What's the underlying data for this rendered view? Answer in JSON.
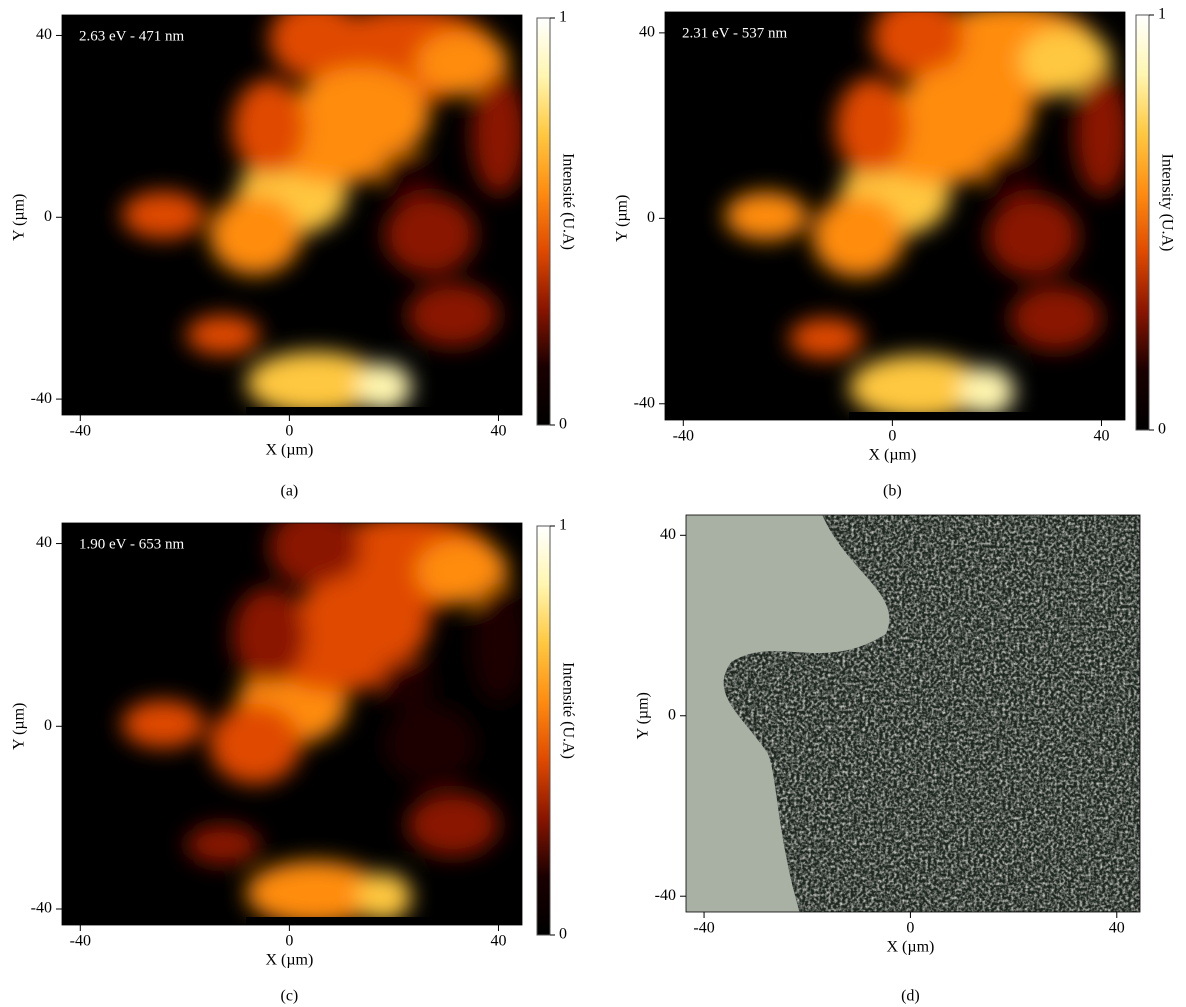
{
  "chart_data": [
    {
      "type": "heatmap",
      "annotation": "2.63 eV - 471 nm",
      "caption": "(a)",
      "x_label": "X (µm)",
      "y_label": "Y (µm)",
      "xlim": [
        -43.5,
        44.5
      ],
      "ylim": [
        -43.5,
        44.5
      ],
      "xticks": [
        -40,
        0,
        40
      ],
      "yticks": [
        -40,
        0,
        40
      ],
      "colorbar_label": "Intensité (U.A)",
      "colorbar_lim": [
        0,
        1
      ],
      "colorbar_ticks": [
        0,
        1
      ],
      "colormap": [
        "#000000",
        "#1a0000",
        "#8a1500",
        "#e04a00",
        "#ff8c10",
        "#ffc840",
        "#fff6b0",
        "#ffffff"
      ]
    },
    {
      "type": "heatmap",
      "annotation": "2.31 eV - 537 nm",
      "caption": "(b)",
      "x_label": "X (µm)",
      "y_label": "Y (µm)",
      "xlim": [
        -43.5,
        44.5
      ],
      "ylim": [
        -43.5,
        44.5
      ],
      "xticks": [
        -40,
        0,
        40
      ],
      "yticks": [
        -40,
        0,
        40
      ],
      "colorbar_label": "Intensity (U.A)",
      "colorbar_lim": [
        0,
        1
      ],
      "colorbar_ticks": [
        0,
        1
      ],
      "colormap": [
        "#000000",
        "#1a0000",
        "#8a1500",
        "#e04a00",
        "#ff8c10",
        "#ffc840",
        "#fff6b0",
        "#ffffff"
      ]
    },
    {
      "type": "heatmap",
      "annotation": "1.90 eV - 653 nm",
      "caption": "(c)",
      "x_label": "X (µm)",
      "y_label": "Y (µm)",
      "xlim": [
        -43.5,
        44.5
      ],
      "ylim": [
        -43.5,
        44.5
      ],
      "xticks": [
        -40,
        0,
        40
      ],
      "yticks": [
        -40,
        0,
        40
      ],
      "colorbar_label": "Intensité (U.A)",
      "colorbar_lim": [
        0,
        1
      ],
      "colorbar_ticks": [
        0,
        1
      ],
      "colormap": [
        "#000000",
        "#1a0000",
        "#8a1500",
        "#e04a00",
        "#ff8c10",
        "#ffc840",
        "#fff6b0",
        "#ffffff"
      ]
    },
    {
      "type": "image",
      "caption": "(d)",
      "x_label": "X (µm)",
      "y_label": "Y (µm)",
      "xlim": [
        -43.5,
        44.5
      ],
      "ylim": [
        -43.5,
        44.5
      ],
      "xticks": [
        -40,
        0,
        40
      ],
      "yticks": [
        -40,
        0,
        40
      ]
    }
  ]
}
